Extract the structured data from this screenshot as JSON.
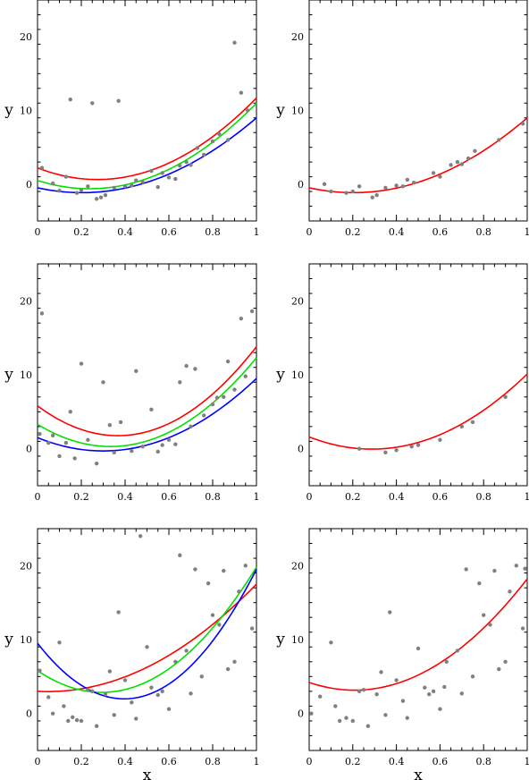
{
  "chart_data": [
    {
      "type": "scatter",
      "xlabel": "",
      "ylabel": "y",
      "xlim": [
        0,
        1
      ],
      "ylim": [
        -5,
        25
      ],
      "x_ticks": [
        "0",
        "0.2",
        "0.4",
        "0.6",
        "0.8",
        "1"
      ],
      "y_ticks": [
        "0",
        "10",
        "20"
      ],
      "points": [
        [
          0.02,
          2.2
        ],
        [
          0.07,
          0.1
        ],
        [
          0.1,
          -0.9
        ],
        [
          0.13,
          1.0
        ],
        [
          0.15,
          11.5
        ],
        [
          0.18,
          -1.2
        ],
        [
          0.2,
          -0.8
        ],
        [
          0.23,
          -0.3
        ],
        [
          0.25,
          11.0
        ],
        [
          0.27,
          -2.0
        ],
        [
          0.29,
          -1.8
        ],
        [
          0.31,
          -1.5
        ],
        [
          0.35,
          -0.5
        ],
        [
          0.37,
          11.3
        ],
        [
          0.4,
          -0.3
        ],
        [
          0.43,
          -0.2
        ],
        [
          0.45,
          0.5
        ],
        [
          0.48,
          0.3
        ],
        [
          0.52,
          1.8
        ],
        [
          0.55,
          -0.4
        ],
        [
          0.57,
          1.5
        ],
        [
          0.6,
          0.9
        ],
        [
          0.63,
          0.7
        ],
        [
          0.65,
          2.5
        ],
        [
          0.68,
          3.0
        ],
        [
          0.7,
          2.6
        ],
        [
          0.73,
          4.9
        ],
        [
          0.76,
          4.0
        ],
        [
          0.8,
          5.8
        ],
        [
          0.83,
          6.8
        ],
        [
          0.87,
          6.0
        ],
        [
          0.9,
          19.2
        ],
        [
          0.93,
          12.4
        ],
        [
          0.96,
          10.0
        ]
      ],
      "curves": [
        {
          "color": "#ff0000",
          "coef": [
            2.2,
            -11.5,
            21.0
          ]
        },
        {
          "color": "#00e000",
          "coef": [
            0.5,
            -9.5,
            20.0
          ]
        },
        {
          "color": "#0000ff",
          "coef": [
            -0.5,
            -6.5,
            16.0
          ]
        }
      ]
    },
    {
      "type": "scatter",
      "xlabel": "",
      "ylabel": "y",
      "xlim": [
        0,
        1
      ],
      "ylim": [
        -5,
        25
      ],
      "x_ticks": [
        "0",
        "0.2",
        "0.4",
        "0.6",
        "0.8",
        "1"
      ],
      "y_ticks": [
        "0",
        "10",
        "20"
      ],
      "points": [
        [
          0.07,
          0.0
        ],
        [
          0.1,
          -1.0
        ],
        [
          0.17,
          -1.2
        ],
        [
          0.2,
          -1.0
        ],
        [
          0.23,
          -0.3
        ],
        [
          0.29,
          -1.8
        ],
        [
          0.31,
          -1.5
        ],
        [
          0.35,
          -0.5
        ],
        [
          0.4,
          -0.2
        ],
        [
          0.43,
          -0.3
        ],
        [
          0.45,
          0.6
        ],
        [
          0.48,
          0.2
        ],
        [
          0.57,
          1.5
        ],
        [
          0.6,
          1.0
        ],
        [
          0.65,
          2.6
        ],
        [
          0.68,
          3.0
        ],
        [
          0.7,
          2.7
        ],
        [
          0.73,
          3.5
        ],
        [
          0.76,
          4.5
        ],
        [
          0.87,
          6.0
        ],
        [
          0.98,
          8.2
        ]
      ],
      "curves": [
        {
          "color": "#ff0000",
          "coef": [
            -0.5,
            -6.5,
            16.0
          ]
        }
      ]
    },
    {
      "type": "scatter",
      "xlabel": "",
      "ylabel": "y",
      "xlim": [
        0,
        1
      ],
      "ylim": [
        -5,
        25
      ],
      "x_ticks": [
        "0",
        "0.2",
        "0.4",
        "0.6",
        "0.8",
        "1"
      ],
      "y_ticks": [
        "0",
        "10",
        "20"
      ],
      "points": [
        [
          0.01,
          2.0
        ],
        [
          0.02,
          18.3
        ],
        [
          0.05,
          0.8
        ],
        [
          0.07,
          1.8
        ],
        [
          0.1,
          -1.0
        ],
        [
          0.13,
          0.8
        ],
        [
          0.15,
          5.0
        ],
        [
          0.17,
          -1.3
        ],
        [
          0.2,
          11.5
        ],
        [
          0.23,
          1.2
        ],
        [
          0.27,
          -2.0
        ],
        [
          0.3,
          9.0
        ],
        [
          0.33,
          3.2
        ],
        [
          0.35,
          -0.5
        ],
        [
          0.38,
          3.6
        ],
        [
          0.43,
          -0.3
        ],
        [
          0.45,
          10.5
        ],
        [
          0.48,
          0.3
        ],
        [
          0.52,
          5.3
        ],
        [
          0.55,
          -0.4
        ],
        [
          0.57,
          0.5
        ],
        [
          0.6,
          1.2
        ],
        [
          0.63,
          0.6
        ],
        [
          0.65,
          9.0
        ],
        [
          0.68,
          11.2
        ],
        [
          0.7,
          3.0
        ],
        [
          0.72,
          10.8
        ],
        [
          0.76,
          4.5
        ],
        [
          0.8,
          6.0
        ],
        [
          0.82,
          6.9
        ],
        [
          0.85,
          7.0
        ],
        [
          0.87,
          11.8
        ],
        [
          0.9,
          8.0
        ],
        [
          0.93,
          17.6
        ],
        [
          0.95,
          9.8
        ],
        [
          0.98,
          18.6
        ]
      ],
      "curves": [
        {
          "color": "#ff0000",
          "coef": [
            5.8,
            -22.0,
            30.0
          ]
        },
        {
          "color": "#00e000",
          "coef": [
            3.3,
            -18.0,
            27.0
          ]
        },
        {
          "color": "#0000ff",
          "coef": [
            1.5,
            -12.0,
            20.0
          ]
        }
      ]
    },
    {
      "type": "scatter",
      "xlabel": "",
      "ylabel": "y",
      "xlim": [
        0,
        1
      ],
      "ylim": [
        -5,
        25
      ],
      "x_ticks": [
        "0",
        "0.2",
        "0.4",
        "0.6",
        "0.8",
        "1"
      ],
      "y_ticks": [
        "0",
        "10",
        "20"
      ],
      "points": [
        [
          0.23,
          0.0
        ],
        [
          0.35,
          -0.5
        ],
        [
          0.4,
          -0.2
        ],
        [
          0.47,
          0.3
        ],
        [
          0.5,
          0.5
        ],
        [
          0.6,
          1.2
        ],
        [
          0.7,
          3.0
        ],
        [
          0.75,
          3.6
        ],
        [
          0.9,
          7.0
        ]
      ],
      "curves": [
        {
          "color": "#ff0000",
          "coef": [
            1.6,
            -11.5,
            20.0
          ]
        }
      ]
    },
    {
      "type": "scatter",
      "xlabel": "x",
      "ylabel": "y",
      "xlim": [
        0,
        1
      ],
      "ylim": [
        -5,
        25
      ],
      "x_ticks": [
        "0",
        "0.2",
        "0.4",
        "0.6",
        "0.8",
        "1"
      ],
      "y_ticks": [
        "0",
        "10",
        "20"
      ],
      "points": [
        [
          0.01,
          5.8
        ],
        [
          0.05,
          2.2
        ],
        [
          0.07,
          0.0
        ],
        [
          0.1,
          9.6
        ],
        [
          0.12,
          1.0
        ],
        [
          0.14,
          -1.0
        ],
        [
          0.16,
          -0.5
        ],
        [
          0.18,
          -0.9
        ],
        [
          0.2,
          -1.0
        ],
        [
          0.23,
          3.2
        ],
        [
          0.25,
          3.0
        ],
        [
          0.27,
          -1.7
        ],
        [
          0.31,
          2.6
        ],
        [
          0.33,
          5.7
        ],
        [
          0.35,
          -0.2
        ],
        [
          0.37,
          13.7
        ],
        [
          0.4,
          4.5
        ],
        [
          0.43,
          1.5
        ],
        [
          0.45,
          -0.7
        ],
        [
          0.47,
          24.0
        ],
        [
          0.5,
          9.0
        ],
        [
          0.52,
          3.5
        ],
        [
          0.55,
          2.5
        ],
        [
          0.57,
          3.0
        ],
        [
          0.6,
          0.6
        ],
        [
          0.63,
          7.0
        ],
        [
          0.65,
          21.4
        ],
        [
          0.68,
          8.5
        ],
        [
          0.7,
          2.7
        ],
        [
          0.72,
          19.5
        ],
        [
          0.75,
          5.0
        ],
        [
          0.78,
          17.6
        ],
        [
          0.8,
          13.3
        ],
        [
          0.83,
          12.0
        ],
        [
          0.85,
          19.3
        ],
        [
          0.87,
          6.0
        ],
        [
          0.9,
          7.0
        ],
        [
          0.92,
          16.5
        ],
        [
          0.95,
          20.0
        ],
        [
          0.98,
          11.5
        ]
      ],
      "curves": [
        {
          "color": "#ff0000",
          "coef": [
            3.0,
            -1.5,
            16.0
          ]
        },
        {
          "color": "#00e000",
          "coef": [
            5.8,
            -20.0,
            34.0
          ]
        },
        {
          "color": "#0000ff",
          "coef": [
            9.5,
            -38.0,
            48.0
          ]
        }
      ]
    },
    {
      "type": "scatter",
      "xlabel": "x",
      "ylabel": "y",
      "xlim": [
        0,
        1
      ],
      "ylim": [
        -5,
        25
      ],
      "x_ticks": [
        "0",
        "0.2",
        "0.4",
        "0.6",
        "0.8",
        "1"
      ],
      "y_ticks": [
        "0",
        "10",
        "20"
      ],
      "points": [
        [
          0.01,
          0.0
        ],
        [
          0.05,
          2.3
        ],
        [
          0.1,
          9.6
        ],
        [
          0.12,
          1.0
        ],
        [
          0.14,
          -1.0
        ],
        [
          0.17,
          -0.6
        ],
        [
          0.2,
          -1.0
        ],
        [
          0.23,
          3.0
        ],
        [
          0.25,
          3.2
        ],
        [
          0.27,
          -1.7
        ],
        [
          0.31,
          2.6
        ],
        [
          0.33,
          5.6
        ],
        [
          0.35,
          -0.2
        ],
        [
          0.37,
          13.7
        ],
        [
          0.4,
          4.5
        ],
        [
          0.43,
          1.7
        ],
        [
          0.45,
          -0.6
        ],
        [
          0.5,
          8.8
        ],
        [
          0.53,
          3.5
        ],
        [
          0.55,
          2.6
        ],
        [
          0.57,
          3.0
        ],
        [
          0.6,
          0.6
        ],
        [
          0.62,
          3.6
        ],
        [
          0.63,
          7.0
        ],
        [
          0.68,
          8.5
        ],
        [
          0.7,
          2.7
        ],
        [
          0.72,
          19.5
        ],
        [
          0.75,
          5.0
        ],
        [
          0.78,
          17.6
        ],
        [
          0.8,
          13.3
        ],
        [
          0.83,
          12.0
        ],
        [
          0.85,
          19.3
        ],
        [
          0.87,
          6.0
        ],
        [
          0.9,
          7.0
        ],
        [
          0.92,
          16.5
        ],
        [
          0.95,
          20.0
        ],
        [
          0.98,
          11.5
        ],
        [
          0.99,
          19.6
        ]
      ],
      "curves": [
        {
          "color": "#ff0000",
          "coef": [
            4.2,
            -10.0,
            24.0
          ]
        }
      ]
    }
  ]
}
